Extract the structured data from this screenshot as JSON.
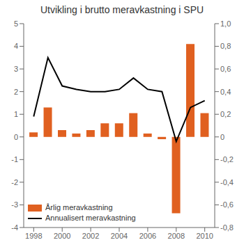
{
  "chart_data": {
    "type": "bar",
    "title": "Utvikling i brutto meravkastning i SPU",
    "x": [
      1998,
      1999,
      2000,
      2001,
      2002,
      2003,
      2004,
      2005,
      2006,
      2007,
      2008,
      2009,
      2010
    ],
    "xlim": [
      1997.3,
      2010.7
    ],
    "xticks": [
      1998,
      2000,
      2002,
      2004,
      2006,
      2008,
      2010
    ],
    "ylim": [
      -4,
      5
    ],
    "yticks": [
      -4,
      -3,
      -2,
      -1,
      0,
      1,
      2,
      3,
      4,
      5
    ],
    "y2lim": [
      -0.8,
      1.0
    ],
    "y2ticks": [
      {
        "value": -0.8,
        "label": "-0,8"
      },
      {
        "value": -0.6,
        "label": "-0,6"
      },
      {
        "value": -0.4,
        "label": "-0,4"
      },
      {
        "value": -0.2,
        "label": "-0,2"
      },
      0,
      {
        "value": 0.2,
        "label": "0,2"
      },
      {
        "value": 0.4,
        "label": "0,4"
      },
      {
        "value": 0.6,
        "label": "0,6"
      },
      {
        "value": 0.8,
        "label": "0,8"
      },
      {
        "value": 1.0,
        "label": "1,0"
      }
    ],
    "grid": false,
    "legend": "lower left",
    "series": [
      {
        "name": "Årlig meravkastning",
        "type": "bar",
        "color": "#E06020",
        "values": [
          0.2,
          1.3,
          0.3,
          0.15,
          0.3,
          0.6,
          0.6,
          1.05,
          0.15,
          -0.1,
          -3.37,
          4.1,
          1.05
        ]
      },
      {
        "name": "Annualisert meravkastning",
        "type": "line",
        "color": "#000000",
        "axis": "y2",
        "values": [
          0.18,
          0.7,
          0.45,
          0.42,
          0.4,
          0.4,
          0.42,
          0.52,
          0.42,
          0.4,
          -0.04,
          0.26,
          0.32
        ]
      }
    ]
  }
}
